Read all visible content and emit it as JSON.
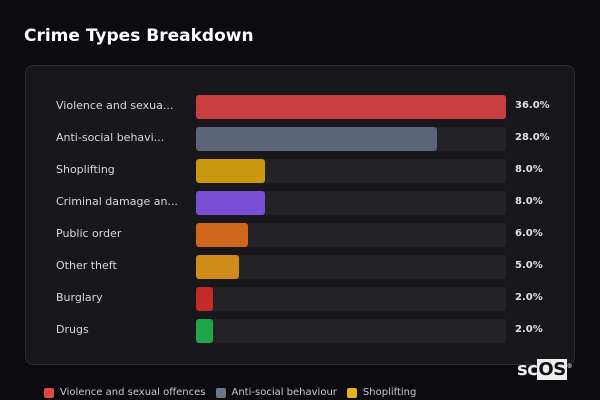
{
  "title": "Crime Types Breakdown",
  "chart_data": {
    "type": "bar",
    "orientation": "horizontal",
    "title": "Crime Types Breakdown",
    "categories": [
      "Violence and sexua...",
      "Anti-social behavi...",
      "Shoplifting",
      "Criminal damage an...",
      "Public order",
      "Other theft",
      "Burglary",
      "Drugs"
    ],
    "values": [
      36.0,
      28.0,
      8.0,
      8.0,
      6.0,
      5.0,
      2.0,
      2.0
    ],
    "value_labels": [
      "36.0%",
      "28.0%",
      "8.0%",
      "8.0%",
      "6.0%",
      "5.0%",
      "2.0%",
      "2.0%"
    ],
    "colors": [
      "#c93f3f",
      "#5a6577",
      "#c9980f",
      "#7a4fd6",
      "#d0661c",
      "#cf8c18",
      "#c32a2a",
      "#1fa64a"
    ],
    "xlim": [
      0,
      36
    ],
    "grid": false
  },
  "legend": [
    {
      "label": "Violence and sexual offences",
      "color": "#e04848"
    },
    {
      "label": "Anti-social behaviour",
      "color": "#6b7689"
    },
    {
      "label": "Shoplifting",
      "color": "#e6b40f"
    }
  ],
  "logo": {
    "text_a": "sc",
    "text_b": "OS",
    "mark": "®"
  }
}
